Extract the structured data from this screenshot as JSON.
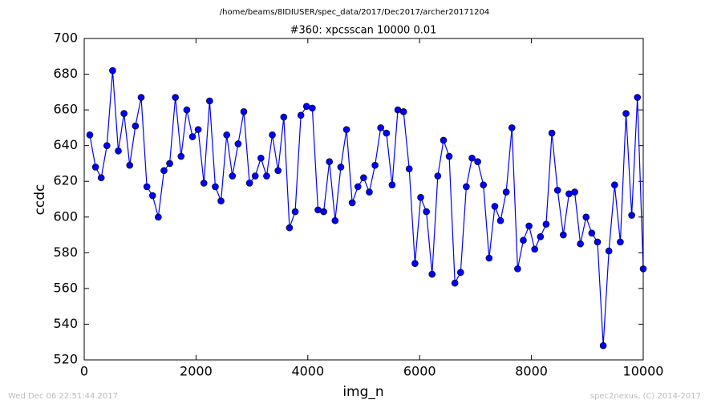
{
  "chart_data": {
    "type": "line",
    "title": "/home/beams/8IDIUSER/spec_data/2017/Dec2017/archer20171204",
    "subtitle": "#360: xpcsscan 10000 0.01",
    "x_label": "img_n",
    "y_label": "ccdc",
    "footer_left": "Wed Dec 06 22:51:44 2017",
    "footer_right": "spec2nexus, (C) 2014-2017",
    "x": [
      100,
      202,
      304,
      406,
      508,
      610,
      712,
      814,
      916,
      1019,
      1121,
      1223,
      1325,
      1427,
      1529,
      1631,
      1733,
      1835,
      1937,
      2039,
      2141,
      2243,
      2345,
      2447,
      2549,
      2651,
      2753,
      2855,
      2957,
      3059,
      3161,
      3263,
      3365,
      3468,
      3570,
      3672,
      3774,
      3876,
      3978,
      4080,
      4182,
      4284,
      4386,
      4488,
      4590,
      4692,
      4794,
      4896,
      4998,
      5100,
      5202,
      5304,
      5406,
      5508,
      5610,
      5712,
      5814,
      5917,
      6019,
      6121,
      6223,
      6325,
      6427,
      6529,
      6631,
      6733,
      6835,
      6937,
      7039,
      7141,
      7243,
      7345,
      7447,
      7549,
      7651,
      7753,
      7855,
      7957,
      8059,
      8161,
      8263,
      8366,
      8468,
      8570,
      8672,
      8774,
      8876,
      8978,
      9080,
      9182,
      9284,
      9386,
      9488,
      9590,
      9692,
      9794,
      9896,
      10000
    ],
    "series": [
      {
        "color": "#0000ff",
        "values": [
          646,
          628,
          622,
          640,
          682,
          637,
          658,
          629,
          651,
          667,
          617,
          612,
          600,
          626,
          630,
          667,
          634,
          660,
          645,
          649,
          619,
          665,
          617,
          609,
          646,
          623,
          641,
          659,
          619,
          623,
          633,
          623,
          646,
          626,
          656,
          594,
          603,
          657,
          662,
          661,
          604,
          603,
          631,
          598,
          628,
          649,
          608,
          617,
          622,
          614,
          629,
          650,
          647,
          618,
          660,
          659,
          627,
          574,
          611,
          603,
          568,
          623,
          643,
          634,
          563,
          569,
          617,
          633,
          631,
          618,
          577,
          606,
          598,
          614,
          650,
          571,
          587,
          595,
          582,
          589,
          596,
          647,
          615,
          590,
          613,
          614,
          585,
          600,
          591,
          586,
          528,
          581,
          618,
          586,
          658,
          601,
          667,
          571
        ]
      }
    ],
    "xlim": [
      0,
      10000
    ],
    "xticks": [
      0,
      2000,
      4000,
      6000,
      8000,
      10000
    ],
    "ylim": [
      520,
      700
    ],
    "yticks": [
      520,
      540,
      560,
      580,
      600,
      620,
      640,
      660,
      680,
      700
    ],
    "grid": false
  }
}
